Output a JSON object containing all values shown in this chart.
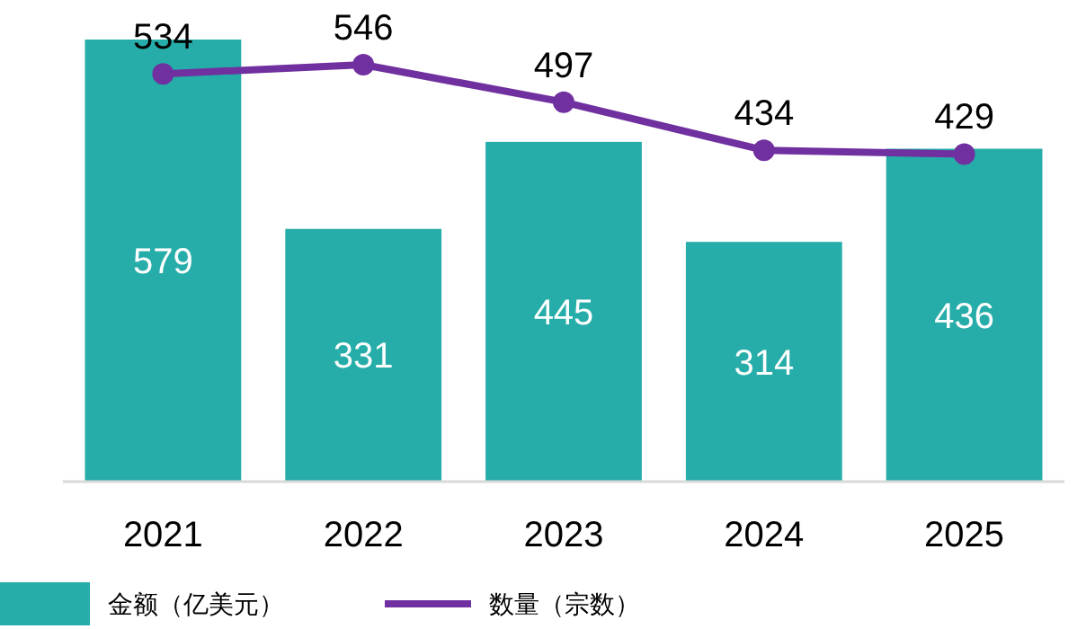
{
  "chart_data": {
    "type": "bar",
    "categories": [
      "2021",
      "2022",
      "2023",
      "2024",
      "2025"
    ],
    "series": [
      {
        "name": "金额（亿美元）",
        "color": "#26ada9",
        "values": [
          579,
          331,
          445,
          314,
          436
        ]
      },
      {
        "name": "数量（宗数）",
        "type": "line",
        "color": "#7030a0",
        "marker": "circle",
        "values": [
          534,
          546,
          497,
          434,
          429
        ]
      }
    ],
    "data_labels": true,
    "legend": "bottom left"
  }
}
